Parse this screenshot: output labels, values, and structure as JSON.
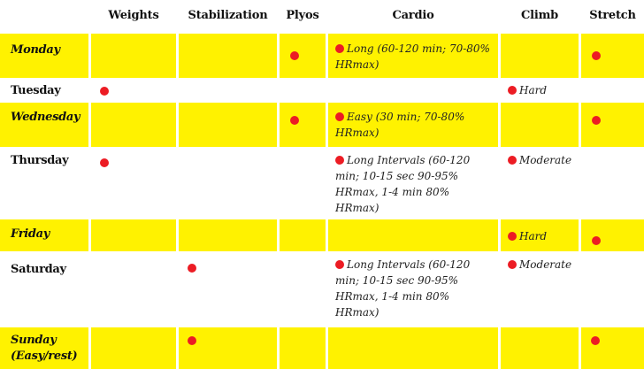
{
  "headers": {
    "weights": "Weights",
    "stabilization": "Stabilization",
    "plyos": "Plyos",
    "cardio": "Cardio",
    "climb": "Climb",
    "stretch": "Stretch"
  },
  "days": {
    "monday": {
      "name": "Monday",
      "cardio": "Long (60-120 min; 70-80% HRmax)"
    },
    "tuesday": {
      "name": "Tuesday",
      "climb": "Hard"
    },
    "wednesday": {
      "name": "Wednesday",
      "cardio": "Easy (30 min; 70-80% HRmax)"
    },
    "thursday": {
      "name": "Thursday",
      "cardio": "Long Intervals (60-120 min; 10-15 sec 90-95% HRmax, 1-4 min 80% HRmax)",
      "climb": "Moderate"
    },
    "friday": {
      "name": "Friday",
      "climb": "Hard"
    },
    "saturday": {
      "name": "Saturday",
      "cardio": "Long Intervals (60-120 min; 10-15 sec 90-95% HRmax, 1-4 min 80% HRmax)",
      "climb": "Moderate"
    },
    "sunday": {
      "name": "Sunday (Easy/rest)"
    }
  },
  "colors": {
    "row_highlight": "#fff200",
    "marker": "#ec1c24"
  }
}
